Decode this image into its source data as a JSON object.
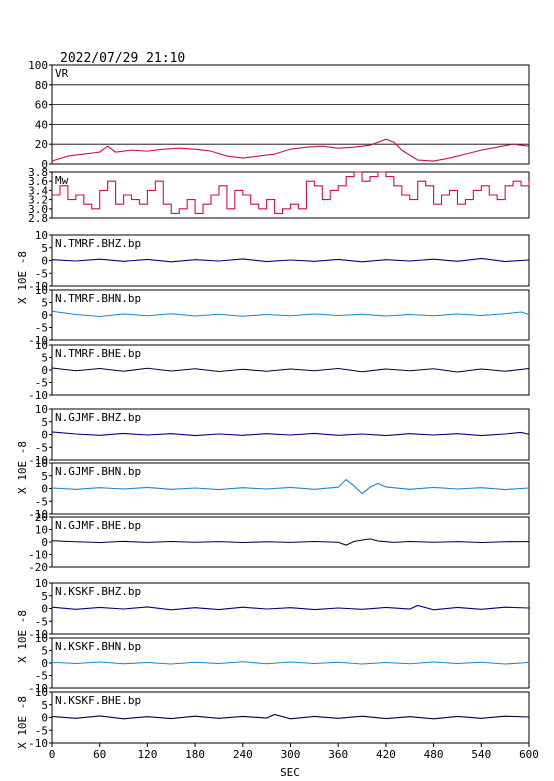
{
  "header": {
    "timestamp": "2022/07/29 21:10"
  },
  "colors": {
    "vr": "#cc1144",
    "mw": "#cc1144",
    "dark_blue": "#000080",
    "light_blue": "#1a88cc",
    "navy": "#000033"
  },
  "chart_data": {
    "type": "line",
    "xlabel": "SEC",
    "xlim": [
      0,
      600
    ],
    "x_ticks": [
      "0",
      "60",
      "120",
      "180",
      "240",
      "300",
      "360",
      "420",
      "480",
      "540",
      "600"
    ],
    "y_axis_group_label": "X 10E -8",
    "panels": [
      {
        "label": "VR",
        "ylim": [
          0,
          100
        ],
        "y_ticks": [
          "100",
          "80",
          "60",
          "40",
          "20",
          "0"
        ],
        "grid": true,
        "color": "vr",
        "x": [
          0,
          20,
          40,
          60,
          70,
          80,
          100,
          120,
          140,
          160,
          180,
          200,
          220,
          240,
          260,
          280,
          300,
          320,
          340,
          360,
          380,
          400,
          420,
          430,
          440,
          460,
          480,
          500,
          520,
          540,
          560,
          580,
          600
        ],
        "values": [
          3,
          8,
          10,
          12,
          18,
          12,
          14,
          13,
          15,
          16,
          15,
          13,
          8,
          6,
          8,
          10,
          15,
          17,
          18,
          16,
          17,
          19,
          25,
          22,
          14,
          4,
          3,
          6,
          10,
          14,
          17,
          20,
          18
        ]
      },
      {
        "label": "Mw",
        "ylim": [
          2.8,
          3.8
        ],
        "y_ticks": [
          "3.8",
          "3.6",
          "3.4",
          "3.2",
          "3.0",
          "2.8"
        ],
        "grid": false,
        "color": "mw",
        "step": true,
        "x": [
          0,
          10,
          20,
          30,
          40,
          50,
          60,
          70,
          80,
          90,
          100,
          110,
          120,
          130,
          140,
          150,
          160,
          170,
          180,
          190,
          200,
          210,
          220,
          230,
          240,
          250,
          260,
          270,
          280,
          290,
          300,
          310,
          320,
          330,
          340,
          350,
          360,
          370,
          380,
          390,
          400,
          410,
          420,
          430,
          440,
          450,
          460,
          470,
          480,
          490,
          500,
          510,
          520,
          530,
          540,
          550,
          560,
          570,
          580,
          590,
          600
        ],
        "values": [
          3.3,
          3.5,
          3.2,
          3.3,
          3.1,
          3.0,
          3.4,
          3.6,
          3.1,
          3.3,
          3.2,
          3.1,
          3.4,
          3.6,
          3.1,
          2.9,
          3.0,
          3.2,
          2.9,
          3.1,
          3.3,
          3.5,
          3.0,
          3.4,
          3.3,
          3.1,
          3.0,
          3.2,
          2.9,
          3.0,
          3.1,
          3.0,
          3.6,
          3.5,
          3.2,
          3.4,
          3.5,
          3.7,
          3.8,
          3.6,
          3.7,
          3.8,
          3.7,
          3.5,
          3.3,
          3.2,
          3.6,
          3.5,
          3.1,
          3.3,
          3.4,
          3.1,
          3.2,
          3.4,
          3.5,
          3.3,
          3.2,
          3.5,
          3.6,
          3.5,
          3.6
        ]
      },
      {
        "label": "N.TMRF.BHZ.bp",
        "ylim": [
          -10,
          10
        ],
        "y_ticks": [
          "10",
          "5",
          "0",
          "-5",
          "-10"
        ],
        "color": "dark_blue",
        "x": [
          0,
          30,
          60,
          90,
          120,
          150,
          180,
          210,
          240,
          270,
          300,
          330,
          360,
          390,
          420,
          450,
          480,
          510,
          540,
          570,
          600
        ],
        "values": [
          0.3,
          -0.2,
          0.5,
          -0.3,
          0.4,
          -0.5,
          0.3,
          -0.2,
          0.6,
          -0.4,
          0.2,
          -0.3,
          0.4,
          -0.5,
          0.3,
          -0.2,
          0.5,
          -0.3,
          0.8,
          -0.4,
          0.2
        ]
      },
      {
        "label": "N.TMRF.BHN.bp",
        "ylim": [
          -10,
          10
        ],
        "y_ticks": [
          "10",
          "5",
          "0",
          "-5",
          "-10"
        ],
        "color": "light_blue",
        "x": [
          0,
          30,
          60,
          90,
          120,
          150,
          180,
          210,
          240,
          270,
          300,
          330,
          360,
          390,
          420,
          450,
          480,
          510,
          540,
          570,
          590,
          600
        ],
        "values": [
          1.5,
          0.2,
          -0.6,
          0.4,
          -0.3,
          0.5,
          -0.4,
          0.3,
          -0.5,
          0.2,
          -0.3,
          0.4,
          -0.2,
          0.3,
          -0.4,
          0.2,
          -0.3,
          0.4,
          -0.2,
          0.5,
          1.2,
          0.2
        ]
      },
      {
        "label": "N.TMRF.BHE.bp",
        "ylim": [
          -10,
          10
        ],
        "y_ticks": [
          "10",
          "5",
          "0",
          "-5",
          "-10"
        ],
        "color": "navy",
        "x": [
          0,
          30,
          60,
          90,
          120,
          150,
          180,
          210,
          240,
          270,
          300,
          330,
          360,
          390,
          420,
          450,
          480,
          510,
          540,
          570,
          600
        ],
        "values": [
          0.8,
          -0.3,
          0.6,
          -0.5,
          0.7,
          -0.4,
          0.5,
          -0.6,
          0.3,
          -0.5,
          0.4,
          -0.3,
          0.6,
          -0.7,
          0.4,
          -0.3,
          0.5,
          -0.8,
          0.4,
          -0.5,
          0.6
        ]
      },
      {
        "label": "N.GJMF.BHZ.bp",
        "ylim": [
          -10,
          10
        ],
        "y_ticks": [
          "10",
          "5",
          "0",
          "-5",
          "-10"
        ],
        "color": "dark_blue",
        "x": [
          0,
          30,
          60,
          90,
          120,
          150,
          180,
          210,
          240,
          270,
          300,
          330,
          360,
          390,
          420,
          450,
          480,
          510,
          540,
          570,
          590,
          600
        ],
        "values": [
          1.0,
          0.2,
          -0.3,
          0.4,
          -0.2,
          0.3,
          -0.4,
          0.2,
          -0.3,
          0.3,
          -0.2,
          0.4,
          -0.3,
          0.2,
          -0.4,
          0.3,
          -0.2,
          0.3,
          -0.4,
          0.2,
          0.8,
          0.1
        ]
      },
      {
        "label": "N.GJMF.BHN.bp",
        "ylim": [
          -10,
          10
        ],
        "y_ticks": [
          "10",
          "5",
          "0",
          "-5",
          "-10"
        ],
        "color": "light_blue",
        "x": [
          0,
          30,
          60,
          90,
          120,
          150,
          180,
          210,
          240,
          270,
          300,
          330,
          360,
          370,
          380,
          390,
          400,
          410,
          420,
          450,
          480,
          510,
          540,
          570,
          600
        ],
        "values": [
          0.2,
          -0.3,
          0.3,
          -0.2,
          0.4,
          -0.3,
          0.2,
          -0.4,
          0.3,
          -0.2,
          0.4,
          -0.3,
          0.5,
          3.5,
          1.0,
          -2.0,
          0.5,
          2.0,
          0.6,
          -0.3,
          0.4,
          -0.2,
          0.3,
          -0.4,
          0.2
        ]
      },
      {
        "label": "N.GJMF.BHE.bp",
        "ylim": [
          -20,
          20
        ],
        "y_ticks": [
          "20",
          "10",
          "0",
          "-10",
          "-20"
        ],
        "color": "navy",
        "x": [
          0,
          30,
          60,
          90,
          120,
          150,
          180,
          210,
          240,
          270,
          300,
          330,
          360,
          370,
          380,
          400,
          410,
          430,
          450,
          480,
          510,
          540,
          570,
          600
        ],
        "values": [
          1.0,
          0.2,
          -0.4,
          0.5,
          -0.3,
          0.4,
          -0.2,
          0.3,
          -0.4,
          0.2,
          -0.3,
          0.4,
          -0.2,
          -2.5,
          0.5,
          2.5,
          0.8,
          -0.3,
          0.4,
          -0.2,
          0.3,
          -0.4,
          0.2,
          0.3
        ]
      },
      {
        "label": "N.KSKF.BHZ.bp",
        "ylim": [
          -10,
          10
        ],
        "y_ticks": [
          "10",
          "5",
          "0",
          "-5",
          "-10"
        ],
        "color": "dark_blue",
        "x": [
          0,
          30,
          60,
          90,
          120,
          150,
          180,
          210,
          240,
          270,
          300,
          330,
          360,
          390,
          420,
          450,
          460,
          480,
          510,
          540,
          570,
          600
        ],
        "values": [
          0.5,
          -0.3,
          0.4,
          -0.2,
          0.6,
          -0.5,
          0.3,
          -0.4,
          0.5,
          -0.2,
          0.3,
          -0.4,
          0.2,
          -0.3,
          0.4,
          -0.2,
          1.2,
          -0.5,
          0.4,
          -0.3,
          0.5,
          0.2
        ]
      },
      {
        "label": "N.KSKF.BHN.bp",
        "ylim": [
          -10,
          10
        ],
        "y_ticks": [
          "10",
          "5",
          "0",
          "-5",
          "-10"
        ],
        "color": "light_blue",
        "x": [
          0,
          30,
          60,
          90,
          120,
          150,
          180,
          210,
          240,
          270,
          300,
          330,
          360,
          390,
          420,
          450,
          480,
          510,
          540,
          570,
          600
        ],
        "values": [
          0.3,
          -0.2,
          0.4,
          -0.3,
          0.2,
          -0.4,
          0.3,
          -0.2,
          0.5,
          -0.3,
          0.4,
          -0.2,
          0.3,
          -0.4,
          0.2,
          -0.3,
          0.4,
          -0.2,
          0.3,
          -0.4,
          0.2
        ]
      },
      {
        "label": "N.KSKF.BHE.bp",
        "ylim": [
          -10,
          10
        ],
        "y_ticks": [
          "10",
          "5",
          "0",
          "-5",
          "-10"
        ],
        "color": "navy",
        "x": [
          0,
          30,
          60,
          90,
          120,
          150,
          180,
          210,
          240,
          270,
          280,
          300,
          330,
          360,
          390,
          420,
          450,
          480,
          510,
          540,
          570,
          600
        ],
        "values": [
          0.4,
          -0.3,
          0.6,
          -0.5,
          0.3,
          -0.4,
          0.5,
          -0.3,
          0.4,
          -0.2,
          1.2,
          -0.5,
          0.4,
          -0.3,
          0.5,
          -0.4,
          0.3,
          -0.5,
          0.4,
          -0.3,
          0.5,
          0.2
        ]
      }
    ]
  }
}
